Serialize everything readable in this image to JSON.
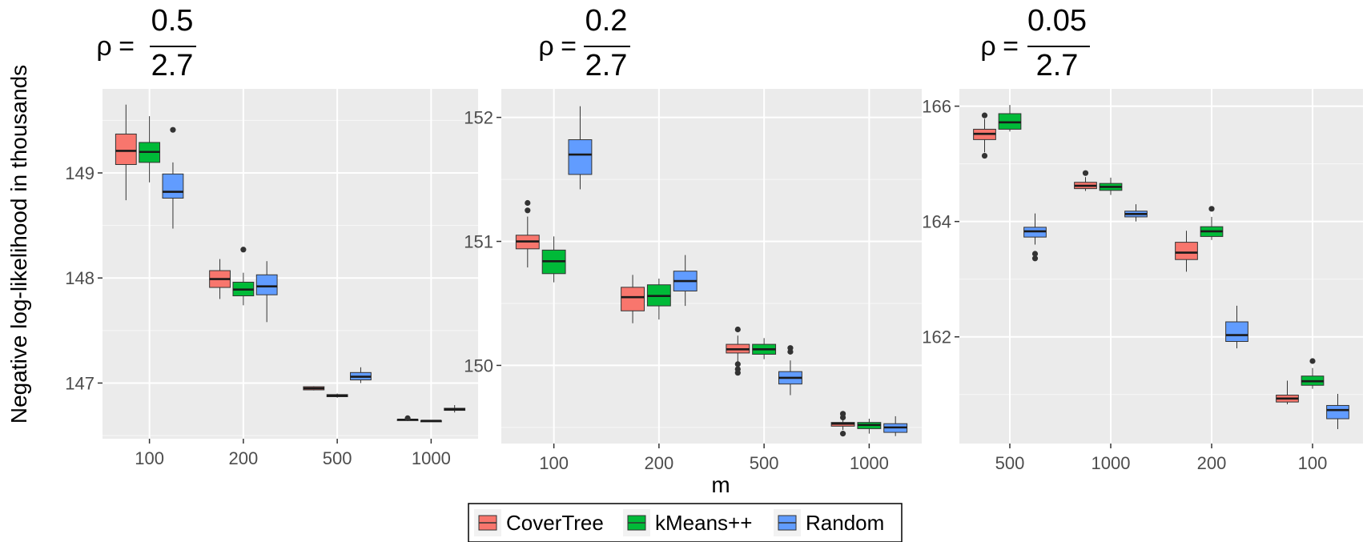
{
  "chart_data": {
    "type": "boxplot",
    "ylabel": "Negative log-likelihood in thousands",
    "xlabel": "m",
    "legend": {
      "position": "bottom",
      "entries": [
        {
          "name": "CoverTree",
          "color": "#F8766D"
        },
        {
          "name": "kMeans++",
          "color": "#00BA38"
        },
        {
          "name": "Random",
          "color": "#619CFF"
        }
      ]
    },
    "panels": [
      {
        "title": {
          "symbol": "ρ",
          "equals": "=",
          "numerator": "0.5",
          "denominator": "2.7"
        },
        "ylim": [
          146.47,
          149.8
        ],
        "yticks": [
          147,
          148,
          149
        ],
        "categories": [
          "100",
          "200",
          "500",
          "1000"
        ],
        "boxes": [
          {
            "cat": 0,
            "series": 0,
            "lw": 148.74,
            "q1": 149.08,
            "med": 149.21,
            "q3": 149.37,
            "uw": 149.65,
            "outliers": []
          },
          {
            "cat": 0,
            "series": 1,
            "lw": 148.91,
            "q1": 149.1,
            "med": 149.2,
            "q3": 149.29,
            "uw": 149.54,
            "outliers": []
          },
          {
            "cat": 0,
            "series": 2,
            "lw": 148.47,
            "q1": 148.76,
            "med": 148.82,
            "q3": 148.99,
            "uw": 149.1,
            "outliers": [
              149.41
            ]
          },
          {
            "cat": 1,
            "series": 0,
            "lw": 147.8,
            "q1": 147.91,
            "med": 147.99,
            "q3": 148.07,
            "uw": 148.18,
            "outliers": []
          },
          {
            "cat": 1,
            "series": 1,
            "lw": 147.74,
            "q1": 147.83,
            "med": 147.89,
            "q3": 147.96,
            "uw": 148.05,
            "outliers": [
              148.27
            ]
          },
          {
            "cat": 1,
            "series": 2,
            "lw": 147.58,
            "q1": 147.84,
            "med": 147.92,
            "q3": 148.03,
            "uw": 148.16,
            "outliers": []
          },
          {
            "cat": 2,
            "series": 0,
            "lw": 146.93,
            "q1": 146.935,
            "med": 146.95,
            "q3": 146.965,
            "uw": 146.97,
            "outliers": []
          },
          {
            "cat": 2,
            "series": 1,
            "lw": 146.86,
            "q1": 146.87,
            "med": 146.88,
            "q3": 146.89,
            "uw": 146.9,
            "outliers": []
          },
          {
            "cat": 2,
            "series": 2,
            "lw": 147.0,
            "q1": 147.03,
            "med": 147.06,
            "q3": 147.1,
            "uw": 147.15,
            "outliers": []
          },
          {
            "cat": 3,
            "series": 0,
            "lw": 146.645,
            "q1": 146.648,
            "med": 146.651,
            "q3": 146.654,
            "uw": 146.657,
            "outliers": [
              146.665
            ]
          },
          {
            "cat": 3,
            "series": 1,
            "lw": 146.635,
            "q1": 146.638,
            "med": 146.64,
            "q3": 146.642,
            "uw": 146.645,
            "outliers": []
          },
          {
            "cat": 3,
            "series": 2,
            "lw": 146.72,
            "q1": 146.74,
            "med": 146.75,
            "q3": 146.76,
            "uw": 146.79,
            "outliers": []
          }
        ]
      },
      {
        "title": {
          "symbol": "ρ",
          "equals": "=",
          "numerator": "0.2",
          "denominator": "2.7"
        },
        "ylim": [
          149.37,
          152.23
        ],
        "yticks": [
          150,
          151,
          152
        ],
        "categories": [
          "100",
          "200",
          "500",
          "1000"
        ],
        "boxes": [
          {
            "cat": 0,
            "series": 0,
            "lw": 150.79,
            "q1": 150.94,
            "med": 151.0,
            "q3": 151.05,
            "uw": 151.2,
            "outliers": [
              151.25,
              151.31
            ]
          },
          {
            "cat": 0,
            "series": 1,
            "lw": 150.67,
            "q1": 150.74,
            "med": 150.84,
            "q3": 150.93,
            "uw": 151.04,
            "outliers": []
          },
          {
            "cat": 0,
            "series": 2,
            "lw": 151.42,
            "q1": 151.54,
            "med": 151.7,
            "q3": 151.82,
            "uw": 152.09,
            "outliers": []
          },
          {
            "cat": 1,
            "series": 0,
            "lw": 150.34,
            "q1": 150.44,
            "med": 150.55,
            "q3": 150.63,
            "uw": 150.73,
            "outliers": []
          },
          {
            "cat": 1,
            "series": 1,
            "lw": 150.37,
            "q1": 150.48,
            "med": 150.56,
            "q3": 150.65,
            "uw": 150.7,
            "outliers": []
          },
          {
            "cat": 1,
            "series": 2,
            "lw": 150.48,
            "q1": 150.6,
            "med": 150.68,
            "q3": 150.76,
            "uw": 150.89,
            "outliers": []
          },
          {
            "cat": 2,
            "series": 0,
            "lw": 150.02,
            "q1": 150.1,
            "med": 150.13,
            "q3": 150.17,
            "uw": 150.24,
            "outliers": [
              149.94,
              149.97,
              150.01,
              150.29
            ]
          },
          {
            "cat": 2,
            "series": 1,
            "lw": 150.05,
            "q1": 150.09,
            "med": 150.13,
            "q3": 150.17,
            "uw": 150.22,
            "outliers": []
          },
          {
            "cat": 2,
            "series": 2,
            "lw": 149.76,
            "q1": 149.85,
            "med": 149.9,
            "q3": 149.95,
            "uw": 150.04,
            "outliers": [
              150.11,
              150.14
            ]
          },
          {
            "cat": 3,
            "series": 0,
            "lw": 149.48,
            "q1": 149.51,
            "med": 149.53,
            "q3": 149.54,
            "uw": 149.56,
            "outliers": [
              149.45,
              149.58,
              149.61
            ]
          },
          {
            "cat": 3,
            "series": 1,
            "lw": 149.45,
            "q1": 149.49,
            "med": 149.52,
            "q3": 149.54,
            "uw": 149.57,
            "outliers": []
          },
          {
            "cat": 3,
            "series": 2,
            "lw": 149.43,
            "q1": 149.46,
            "med": 149.5,
            "q3": 149.53,
            "uw": 149.59,
            "outliers": []
          }
        ]
      },
      {
        "title": {
          "symbol": "ρ",
          "equals": "=",
          "numerator": "0.05",
          "denominator": "2.7"
        },
        "ylim": [
          160.15,
          166.3
        ],
        "yticks": [
          162,
          164,
          166
        ],
        "categories": [
          "500",
          "1000",
          "200",
          "100"
        ],
        "boxes": [
          {
            "cat": 0,
            "series": 0,
            "lw": 165.2,
            "q1": 165.42,
            "med": 165.52,
            "q3": 165.6,
            "uw": 165.78,
            "outliers": [
              165.14,
              165.84
            ]
          },
          {
            "cat": 0,
            "series": 1,
            "lw": 165.56,
            "q1": 165.6,
            "med": 165.72,
            "q3": 165.87,
            "uw": 166.02,
            "outliers": []
          },
          {
            "cat": 0,
            "series": 2,
            "lw": 163.6,
            "q1": 163.73,
            "med": 163.83,
            "q3": 163.9,
            "uw": 164.14,
            "outliers": [
              163.36,
              163.44
            ]
          },
          {
            "cat": 1,
            "series": 0,
            "lw": 164.53,
            "q1": 164.57,
            "med": 164.62,
            "q3": 164.68,
            "uw": 164.77,
            "outliers": [
              164.84
            ]
          },
          {
            "cat": 1,
            "series": 1,
            "lw": 164.46,
            "q1": 164.54,
            "med": 164.6,
            "q3": 164.66,
            "uw": 164.76,
            "outliers": []
          },
          {
            "cat": 1,
            "series": 2,
            "lw": 164.0,
            "q1": 164.08,
            "med": 164.13,
            "q3": 164.18,
            "uw": 164.3,
            "outliers": []
          },
          {
            "cat": 2,
            "series": 0,
            "lw": 163.13,
            "q1": 163.34,
            "med": 163.46,
            "q3": 163.64,
            "uw": 163.84,
            "outliers": []
          },
          {
            "cat": 2,
            "series": 1,
            "lw": 163.68,
            "q1": 163.74,
            "med": 163.83,
            "q3": 163.91,
            "uw": 164.08,
            "outliers": [
              164.22
            ]
          },
          {
            "cat": 2,
            "series": 2,
            "lw": 161.8,
            "q1": 161.92,
            "med": 162.03,
            "q3": 162.26,
            "uw": 162.54,
            "outliers": []
          },
          {
            "cat": 3,
            "series": 0,
            "lw": 160.83,
            "q1": 160.87,
            "med": 160.93,
            "q3": 160.99,
            "uw": 161.24,
            "outliers": []
          },
          {
            "cat": 3,
            "series": 1,
            "lw": 161.1,
            "q1": 161.16,
            "med": 161.23,
            "q3": 161.32,
            "uw": 161.46,
            "outliers": [
              161.58
            ]
          },
          {
            "cat": 3,
            "series": 2,
            "lw": 160.4,
            "q1": 160.58,
            "med": 160.73,
            "q3": 160.81,
            "uw": 161.01,
            "outliers": []
          }
        ]
      }
    ]
  }
}
